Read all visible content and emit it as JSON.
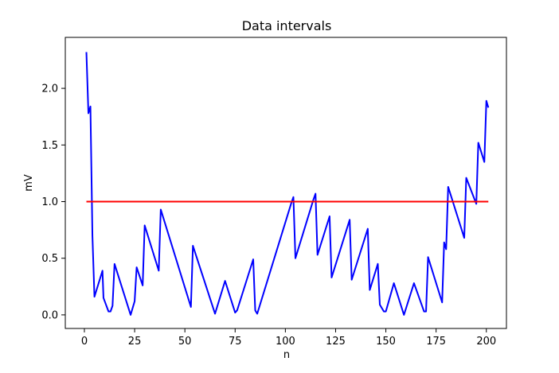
{
  "chart_data": {
    "type": "line",
    "title": "Data intervals",
    "xlabel": "n",
    "ylabel": "mV",
    "xlim": [
      -9.5,
      210
    ],
    "ylim": [
      -0.12,
      2.45
    ],
    "xticks": [
      0,
      25,
      50,
      75,
      100,
      125,
      150,
      175,
      200
    ],
    "yticks": [
      0.0,
      0.5,
      1.0,
      1.5,
      2.0
    ],
    "xtick_labels": [
      "0",
      "25",
      "50",
      "75",
      "100",
      "125",
      "150",
      "175",
      "200"
    ],
    "ytick_labels": [
      "0.0",
      "0.5",
      "1.0",
      "1.5",
      "2.0"
    ],
    "grid": false,
    "series": [
      {
        "color": "#0000ff",
        "points": [
          [
            1,
            2.32
          ],
          [
            2,
            1.78
          ],
          [
            3,
            1.84
          ],
          [
            4,
            0.7
          ],
          [
            5,
            0.16
          ],
          [
            9,
            0.39
          ],
          [
            9.5,
            0.15
          ],
          [
            12,
            0.03
          ],
          [
            13,
            0.03
          ],
          [
            14,
            0.08
          ],
          [
            15,
            0.45
          ],
          [
            23,
            0.0
          ],
          [
            25,
            0.12
          ],
          [
            26,
            0.42
          ],
          [
            29,
            0.26
          ],
          [
            30,
            0.79
          ],
          [
            37,
            0.39
          ],
          [
            38,
            0.93
          ],
          [
            53,
            0.07
          ],
          [
            54,
            0.61
          ],
          [
            65,
            0.01
          ],
          [
            70,
            0.3
          ],
          [
            75,
            0.02
          ],
          [
            76,
            0.04
          ],
          [
            84,
            0.49
          ],
          [
            85,
            0.04
          ],
          [
            86,
            0.01
          ],
          [
            103,
            0.99
          ],
          [
            104,
            1.04
          ],
          [
            105,
            0.5
          ],
          [
            114,
            1.02
          ],
          [
            115,
            1.07
          ],
          [
            116,
            0.53
          ],
          [
            122,
            0.87
          ],
          [
            123,
            0.33
          ],
          [
            132,
            0.84
          ],
          [
            133,
            0.31
          ],
          [
            141,
            0.76
          ],
          [
            142,
            0.22
          ],
          [
            146,
            0.45
          ],
          [
            147,
            0.09
          ],
          [
            149,
            0.03
          ],
          [
            150,
            0.03
          ],
          [
            154,
            0.28
          ],
          [
            159,
            0.0
          ],
          [
            164,
            0.28
          ],
          [
            165,
            0.23
          ],
          [
            169,
            0.03
          ],
          [
            170,
            0.03
          ],
          [
            171,
            0.51
          ],
          [
            178,
            0.11
          ],
          [
            179,
            0.64
          ],
          [
            180,
            0.58
          ],
          [
            181,
            1.13
          ],
          [
            189,
            0.68
          ],
          [
            190,
            1.21
          ],
          [
            195,
            0.98
          ],
          [
            196,
            1.52
          ],
          [
            199,
            1.35
          ],
          [
            200,
            1.89
          ],
          [
            201,
            1.83
          ]
        ]
      },
      {
        "color": "#ff0000",
        "points": [
          [
            1,
            1.0
          ],
          [
            201,
            1.0
          ]
        ]
      }
    ]
  }
}
